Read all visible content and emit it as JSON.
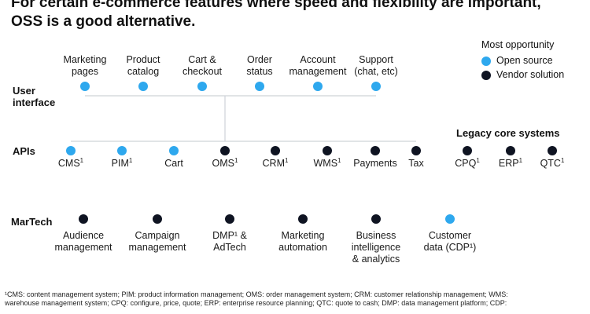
{
  "title": {
    "line1": "For certain e-commerce features where speed and flexibility are important,",
    "line2": "OSS is a good alternative."
  },
  "legend": {
    "title": "Most opportunity",
    "items": [
      {
        "label": "Open source",
        "color": "#2ea8ee"
      },
      {
        "label": "Vendor solution",
        "color": "#0f1422"
      }
    ]
  },
  "rows": {
    "ui": {
      "line1": "User",
      "line2": "interface"
    },
    "apis": "APIs",
    "martech": "MarTech"
  },
  "ui_items": [
    {
      "l1": "Marketing",
      "l2": "pages",
      "type": "open"
    },
    {
      "l1": "Product",
      "l2": "catalog",
      "type": "open"
    },
    {
      "l1": "Cart &",
      "l2": "checkout",
      "type": "open"
    },
    {
      "l1": "Order",
      "l2": "status",
      "type": "open"
    },
    {
      "l1": "Account",
      "l2": "management",
      "type": "open"
    },
    {
      "l1": "Support",
      "l2": "(chat, etc)",
      "type": "open"
    }
  ],
  "api_items": [
    {
      "label": "CMS",
      "sup": "1",
      "type": "open"
    },
    {
      "label": "PIM",
      "sup": "1",
      "type": "open"
    },
    {
      "label": "Cart",
      "sup": "",
      "type": "open"
    },
    {
      "label": "OMS",
      "sup": "1",
      "type": "vendor"
    },
    {
      "label": "CRM",
      "sup": "1",
      "type": "vendor"
    },
    {
      "label": "WMS",
      "sup": "1",
      "type": "vendor"
    },
    {
      "label": "Payments",
      "sup": "",
      "type": "vendor"
    },
    {
      "label": "Tax",
      "sup": "",
      "type": "vendor"
    }
  ],
  "legacy": {
    "title": "Legacy core systems",
    "items": [
      {
        "label": "CPQ",
        "sup": "1",
        "type": "vendor"
      },
      {
        "label": "ERP",
        "sup": "1",
        "type": "vendor"
      },
      {
        "label": "QTC",
        "sup": "1",
        "type": "vendor"
      }
    ]
  },
  "martech_items": [
    {
      "lines": [
        "Audience",
        "management"
      ],
      "type": "vendor"
    },
    {
      "lines": [
        "Campaign",
        "management"
      ],
      "type": "vendor"
    },
    {
      "lines": [
        "DMP¹ &",
        "AdTech"
      ],
      "type": "vendor"
    },
    {
      "lines": [
        "Marketing",
        "automation"
      ],
      "type": "vendor"
    },
    {
      "lines": [
        "Business",
        "intelligence",
        "& analytics"
      ],
      "type": "vendor"
    },
    {
      "lines": [
        "Customer",
        "data (CDP¹)"
      ],
      "type": "open"
    }
  ],
  "footnote": {
    "line1": "¹CMS: content management system; PIM: product information management; OMS: order management system; CRM: customer relationship management; WMS:",
    "line2": " warehouse management system; CPQ: configure, price, quote; ERP: enterprise resource planning; QTC: quote to cash; DMP: data management platform; CDP:"
  }
}
